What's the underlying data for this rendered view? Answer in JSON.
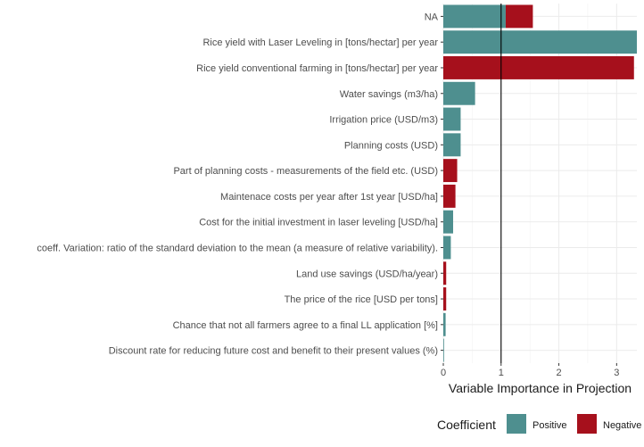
{
  "chart_data": {
    "type": "bar",
    "orientation": "horizontal",
    "xlabel": "Variable Importance in Projection",
    "ylabel": "",
    "xlim": [
      0,
      3.35
    ],
    "xticks": [
      0,
      1,
      2,
      3
    ],
    "reference_line": 1,
    "grid": true,
    "legend": {
      "title": "Coefficient",
      "placement": "bottom",
      "entries": [
        {
          "name": "Positive",
          "color": "#4e8f8f"
        },
        {
          "name": "Negative",
          "color": "#a6101c"
        }
      ]
    },
    "categories": [
      "NA",
      "Rice yield with Laser Leveling in [tons/hectar] per year",
      "Rice yield conventional farming in [tons/hectar] per year",
      "Water savings (m3/ha)",
      "Irrigation price (USD/m3)",
      "Planning costs (USD)",
      "Part of planning costs - measurements of the field etc. (USD)",
      "Maintenace costs per year after 1st year [USD/ha]",
      "Cost for the initial investment in laser leveling  [USD/ha]",
      "coeff. Variation: ratio of the standard deviation to the mean (a measure of relative variability).",
      "Land use savings (USD/ha/year)",
      "The price of the rice [USD per tons]",
      "Chance that not all farmers agree to a final LL application [%]",
      "Discount rate for reducing future cost and benefit to their present values (%)"
    ],
    "bars": [
      [
        {
          "value": 1.08,
          "coefficient": "Positive"
        },
        {
          "value": 0.47,
          "coefficient": "Negative"
        }
      ],
      [
        {
          "value": 3.35,
          "coefficient": "Positive"
        }
      ],
      [
        {
          "value": 3.3,
          "coefficient": "Negative"
        }
      ],
      [
        {
          "value": 0.55,
          "coefficient": "Positive"
        }
      ],
      [
        {
          "value": 0.3,
          "coefficient": "Positive"
        }
      ],
      [
        {
          "value": 0.3,
          "coefficient": "Positive"
        }
      ],
      [
        {
          "value": 0.24,
          "coefficient": "Negative"
        }
      ],
      [
        {
          "value": 0.21,
          "coefficient": "Negative"
        }
      ],
      [
        {
          "value": 0.17,
          "coefficient": "Positive"
        }
      ],
      [
        {
          "value": 0.13,
          "coefficient": "Positive"
        }
      ],
      [
        {
          "value": 0.05,
          "coefficient": "Negative"
        }
      ],
      [
        {
          "value": 0.05,
          "coefficient": "Negative"
        }
      ],
      [
        {
          "value": 0.04,
          "coefficient": "Positive"
        }
      ],
      [
        {
          "value": 0.01,
          "coefficient": "Positive"
        }
      ]
    ]
  }
}
